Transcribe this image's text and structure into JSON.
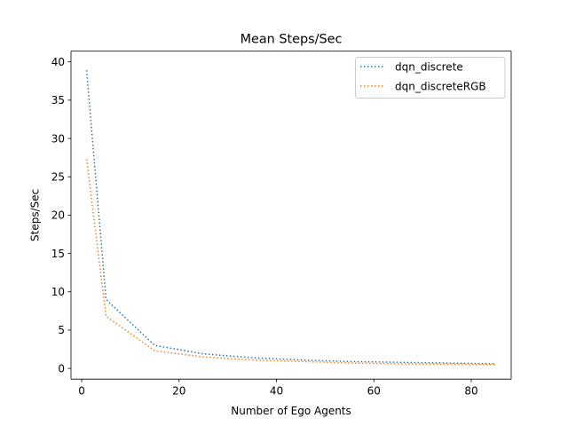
{
  "chart_data": {
    "type": "line",
    "title": "Mean Steps/Sec",
    "xlabel": "Number of Ego Agents",
    "ylabel": "Steps/Sec",
    "xlim": [
      -2.2,
      88.2
    ],
    "ylim": [
      -1.4,
      41.4
    ],
    "xticks": [
      0,
      20,
      40,
      60,
      80
    ],
    "yticks": [
      0,
      5,
      10,
      15,
      20,
      25,
      30,
      35,
      40
    ],
    "grid": false,
    "legend_position": "top-right",
    "x": [
      1,
      5,
      15,
      25,
      35,
      45,
      55,
      65,
      75,
      85
    ],
    "series": [
      {
        "name": "dqn_discrete",
        "color": "#1f77b4",
        "linestyle": "dotted",
        "values": [
          38.9,
          9.0,
          3.0,
          1.9,
          1.4,
          1.1,
          0.9,
          0.8,
          0.7,
          0.6
        ]
      },
      {
        "name": "dqn_discreteRGB",
        "color": "#ff7f0e",
        "linestyle": "dotted",
        "values": [
          27.3,
          6.8,
          2.3,
          1.5,
          1.1,
          0.9,
          0.7,
          0.6,
          0.55,
          0.5
        ]
      }
    ]
  }
}
